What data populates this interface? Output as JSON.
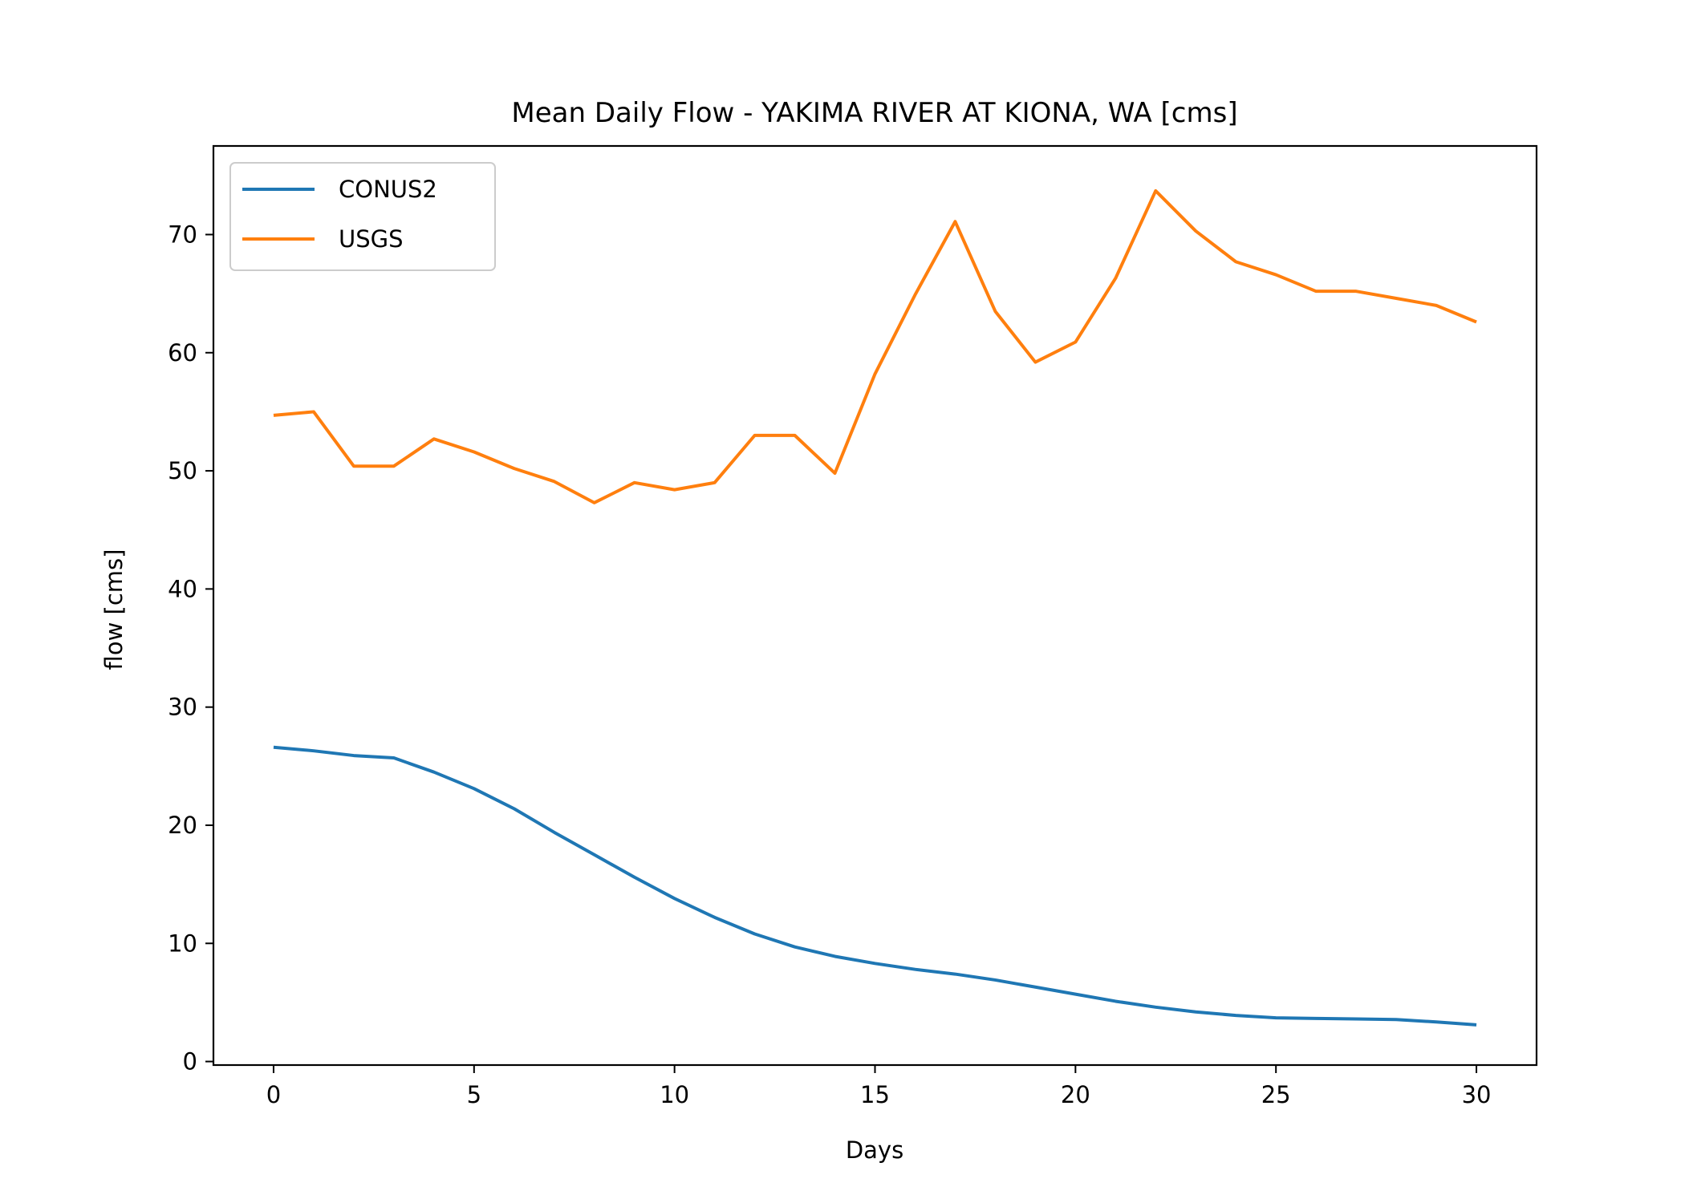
{
  "chart_data": {
    "type": "line",
    "title": "Mean Daily Flow - YAKIMA RIVER AT KIONA, WA [cms]",
    "xlabel": "Days",
    "ylabel": "flow [cms]",
    "xlim": [
      -1.5,
      31.5
    ],
    "ylim": [
      -0.3,
      77.5
    ],
    "x_ticks": [
      0,
      5,
      10,
      15,
      20,
      25,
      30
    ],
    "y_ticks": [
      0,
      10,
      20,
      30,
      40,
      50,
      60,
      70
    ],
    "grid": false,
    "legend_position": "top-left",
    "x": [
      0,
      1,
      2,
      3,
      4,
      5,
      6,
      7,
      8,
      9,
      10,
      11,
      12,
      13,
      14,
      15,
      16,
      17,
      18,
      19,
      20,
      21,
      22,
      23,
      24,
      25,
      26,
      27,
      28,
      29,
      30
    ],
    "series": [
      {
        "name": "CONUS2",
        "color": "#1f77b4",
        "values": [
          26.6,
          26.3,
          25.9,
          25.7,
          24.5,
          23.1,
          21.4,
          19.4,
          17.5,
          15.6,
          13.8,
          12.2,
          10.8,
          9.7,
          8.9,
          8.3,
          7.8,
          7.4,
          6.9,
          6.3,
          5.7,
          5.1,
          4.6,
          4.2,
          3.9,
          3.7,
          3.65,
          3.6,
          3.55,
          3.35,
          3.1
        ]
      },
      {
        "name": "USGS",
        "color": "#ff7f0e",
        "values": [
          54.7,
          55.0,
          50.4,
          50.4,
          52.7,
          51.6,
          50.2,
          49.1,
          47.3,
          49.0,
          48.4,
          49.0,
          53.0,
          53.0,
          49.8,
          58.2,
          64.9,
          71.1,
          63.5,
          59.2,
          60.9,
          66.3,
          73.7,
          70.3,
          67.7,
          66.6,
          65.2,
          65.2,
          64.6,
          64.0,
          62.6
        ]
      }
    ]
  }
}
